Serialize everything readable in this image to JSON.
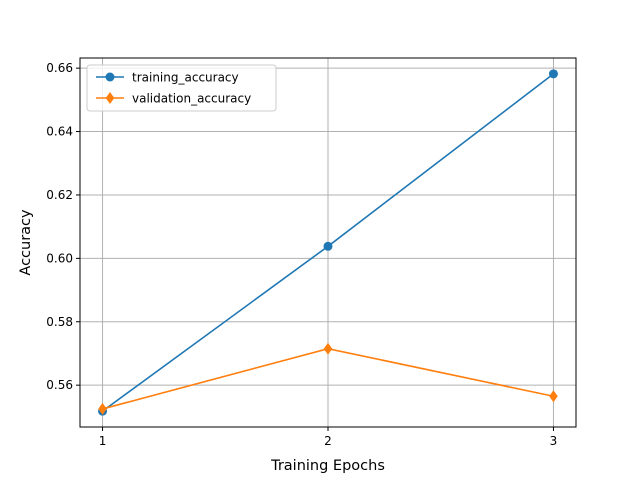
{
  "chart_data": {
    "type": "line",
    "title": "",
    "xlabel": "Training Epochs",
    "ylabel": "Accuracy",
    "x": [
      1,
      2,
      3
    ],
    "xticks": [
      "1",
      "2",
      "3"
    ],
    "yticks": [
      "0.56",
      "0.58",
      "0.60",
      "0.62",
      "0.64",
      "0.66"
    ],
    "ylim": [
      0.5468,
      0.6632
    ],
    "xlim": [
      0.9,
      3.1
    ],
    "grid": true,
    "legend_position": "top-left",
    "series": [
      {
        "name": "training_accuracy",
        "values": [
          0.5518,
          0.6038,
          0.6582
        ],
        "marker": "circle",
        "color": "#1f77b4"
      },
      {
        "name": "validation_accuracy",
        "values": [
          0.5525,
          0.5715,
          0.5565
        ],
        "marker": "diamond",
        "color": "#ff7f0e"
      }
    ]
  }
}
